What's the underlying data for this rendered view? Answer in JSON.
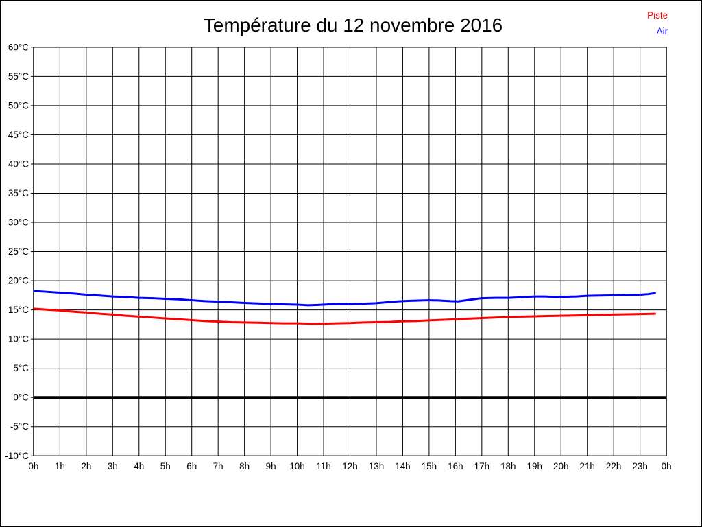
{
  "title": "Température du 12 novembre 2016",
  "legend": [
    {
      "label": "Piste",
      "color": "#ff0000"
    },
    {
      "label": "Air",
      "color": "#0000ff"
    }
  ],
  "chart_data": {
    "type": "line",
    "title": "Température du 12 novembre 2016",
    "xlabel": "",
    "ylabel": "",
    "xlim": [
      0,
      24
    ],
    "ylim": [
      -10,
      60
    ],
    "x_step": 1,
    "y_step": 5,
    "grid": true,
    "zero_line_bold": true,
    "legend_position": "top-right",
    "x_tick_labels": [
      "0h",
      "1h",
      "2h",
      "3h",
      "4h",
      "5h",
      "6h",
      "7h",
      "8h",
      "9h",
      "10h",
      "11h",
      "12h",
      "13h",
      "14h",
      "15h",
      "16h",
      "17h",
      "18h",
      "19h",
      "20h",
      "21h",
      "22h",
      "23h",
      "0h"
    ],
    "y_tick_labels": [
      "60°C",
      "55°C",
      "50°C",
      "45°C",
      "40°C",
      "35°C",
      "30°C",
      "25°C",
      "20°C",
      "15°C",
      "10°C",
      "5°C",
      "0°C",
      "-5°C",
      "-10°C"
    ],
    "series": [
      {
        "name": "Piste",
        "color": "#ff0000",
        "x": [
          0,
          0.5,
          1,
          1.5,
          2,
          2.5,
          3,
          3.5,
          4,
          4.5,
          5,
          5.5,
          6,
          6.5,
          7,
          7.5,
          8,
          8.5,
          9,
          9.5,
          10,
          10.5,
          11,
          11.5,
          12,
          12.5,
          13,
          13.5,
          14,
          14.5,
          15,
          15.5,
          16,
          16.5,
          17,
          17.5,
          18,
          18.5,
          19,
          19.5,
          20,
          20.5,
          21,
          21.5,
          22,
          22.5,
          23,
          23.6
        ],
        "y": [
          15.2,
          15.05,
          14.9,
          14.7,
          14.55,
          14.35,
          14.2,
          14.0,
          13.85,
          13.7,
          13.55,
          13.4,
          13.25,
          13.1,
          13.0,
          12.9,
          12.85,
          12.8,
          12.75,
          12.7,
          12.7,
          12.65,
          12.65,
          12.7,
          12.75,
          12.85,
          12.9,
          12.95,
          13.05,
          13.1,
          13.2,
          13.3,
          13.4,
          13.5,
          13.6,
          13.7,
          13.8,
          13.85,
          13.9,
          13.95,
          14.0,
          14.05,
          14.1,
          14.15,
          14.2,
          14.25,
          14.3,
          14.35
        ]
      },
      {
        "name": "Air",
        "color": "#0000ff",
        "x": [
          0,
          0.5,
          1,
          1.5,
          2,
          2.5,
          3,
          3.5,
          4,
          4.5,
          5,
          5.5,
          6,
          6.5,
          7,
          7.5,
          8,
          8.5,
          9,
          9.5,
          10,
          10.4,
          10.8,
          11.2,
          11.6,
          12,
          12.5,
          13,
          13.4,
          13.8,
          14.2,
          14.6,
          15,
          15.4,
          15.8,
          16.1,
          16.5,
          17,
          17.5,
          18,
          18.5,
          19,
          19.4,
          19.8,
          20.2,
          20.6,
          21,
          21.5,
          22,
          22.5,
          23,
          23.3,
          23.6
        ],
        "y": [
          18.25,
          18.1,
          17.95,
          17.8,
          17.6,
          17.45,
          17.3,
          17.2,
          17.05,
          17.0,
          16.9,
          16.8,
          16.65,
          16.5,
          16.4,
          16.3,
          16.2,
          16.1,
          16.0,
          15.95,
          15.9,
          15.8,
          15.85,
          15.95,
          16.0,
          16.0,
          16.05,
          16.15,
          16.3,
          16.45,
          16.55,
          16.6,
          16.65,
          16.6,
          16.5,
          16.45,
          16.7,
          17.0,
          17.05,
          17.05,
          17.15,
          17.3,
          17.3,
          17.2,
          17.25,
          17.3,
          17.4,
          17.45,
          17.5,
          17.55,
          17.6,
          17.7,
          17.9
        ]
      }
    ]
  }
}
